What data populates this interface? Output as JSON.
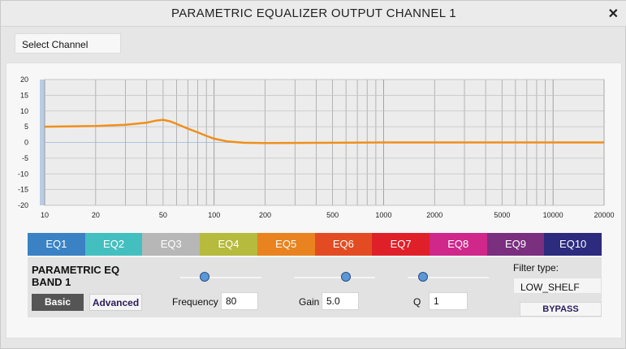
{
  "window": {
    "title": "PARAMETRIC EQUALIZER OUTPUT CHANNEL 1",
    "close_icon": "close-icon"
  },
  "select_channel": {
    "label": "Select Channel"
  },
  "chart_data": {
    "type": "line",
    "title": "",
    "xlabel": "",
    "ylabel": "",
    "x_scale": "log",
    "xlim": [
      10,
      20000
    ],
    "ylim": [
      -20,
      20
    ],
    "grid": true,
    "x_ticks": [
      "10",
      "20",
      "50",
      "100",
      "200",
      "500",
      "1000",
      "2000",
      "5000",
      "10000",
      "20000"
    ],
    "y_ticks": [
      "20",
      "15",
      "10",
      "5",
      "0",
      "-5",
      "-10",
      "-15",
      "-20"
    ],
    "series": [
      {
        "color": "#ef8f1b",
        "x": [
          10,
          20,
          30,
          40,
          45,
          50,
          55,
          60,
          70,
          80,
          90,
          100,
          120,
          150,
          200,
          500,
          1000,
          2000,
          5000,
          10000,
          20000
        ],
        "y": [
          5.0,
          5.2,
          5.6,
          6.3,
          6.9,
          7.2,
          6.7,
          5.9,
          4.4,
          3.2,
          2.1,
          1.2,
          0.3,
          -0.1,
          -0.2,
          -0.1,
          0.0,
          0.0,
          0.0,
          0.0,
          0.0
        ]
      }
    ]
  },
  "eq_tabs": [
    {
      "label": "EQ1",
      "color": "#3a82c4"
    },
    {
      "label": "EQ2",
      "color": "#44bfc0"
    },
    {
      "label": "EQ3",
      "color": "#b7b7b7"
    },
    {
      "label": "EQ4",
      "color": "#b6ba3d"
    },
    {
      "label": "EQ5",
      "color": "#e9831f"
    },
    {
      "label": "EQ6",
      "color": "#e34c22"
    },
    {
      "label": "EQ7",
      "color": "#df2029"
    },
    {
      "label": "EQ8",
      "color": "#d0278a"
    },
    {
      "label": "EQ9",
      "color": "#7a2f7f"
    },
    {
      "label": "EQ10",
      "color": "#2c2b7e"
    }
  ],
  "band": {
    "title": "PARAMETRIC EQ BAND 1",
    "basic_label": "Basic",
    "advanced_label": "Advanced",
    "frequency": {
      "label": "Frequency",
      "value": "80",
      "slider_fraction": 0.3
    },
    "gain": {
      "label": "Gain",
      "value": "5.0",
      "slider_fraction": 0.64
    },
    "q": {
      "label": "Q",
      "value": "1",
      "slider_fraction": 0.19
    },
    "filter_type_label": "Filter type:",
    "filter_type_value": "LOW_SHELF",
    "bypass_label": "BYPASS"
  }
}
